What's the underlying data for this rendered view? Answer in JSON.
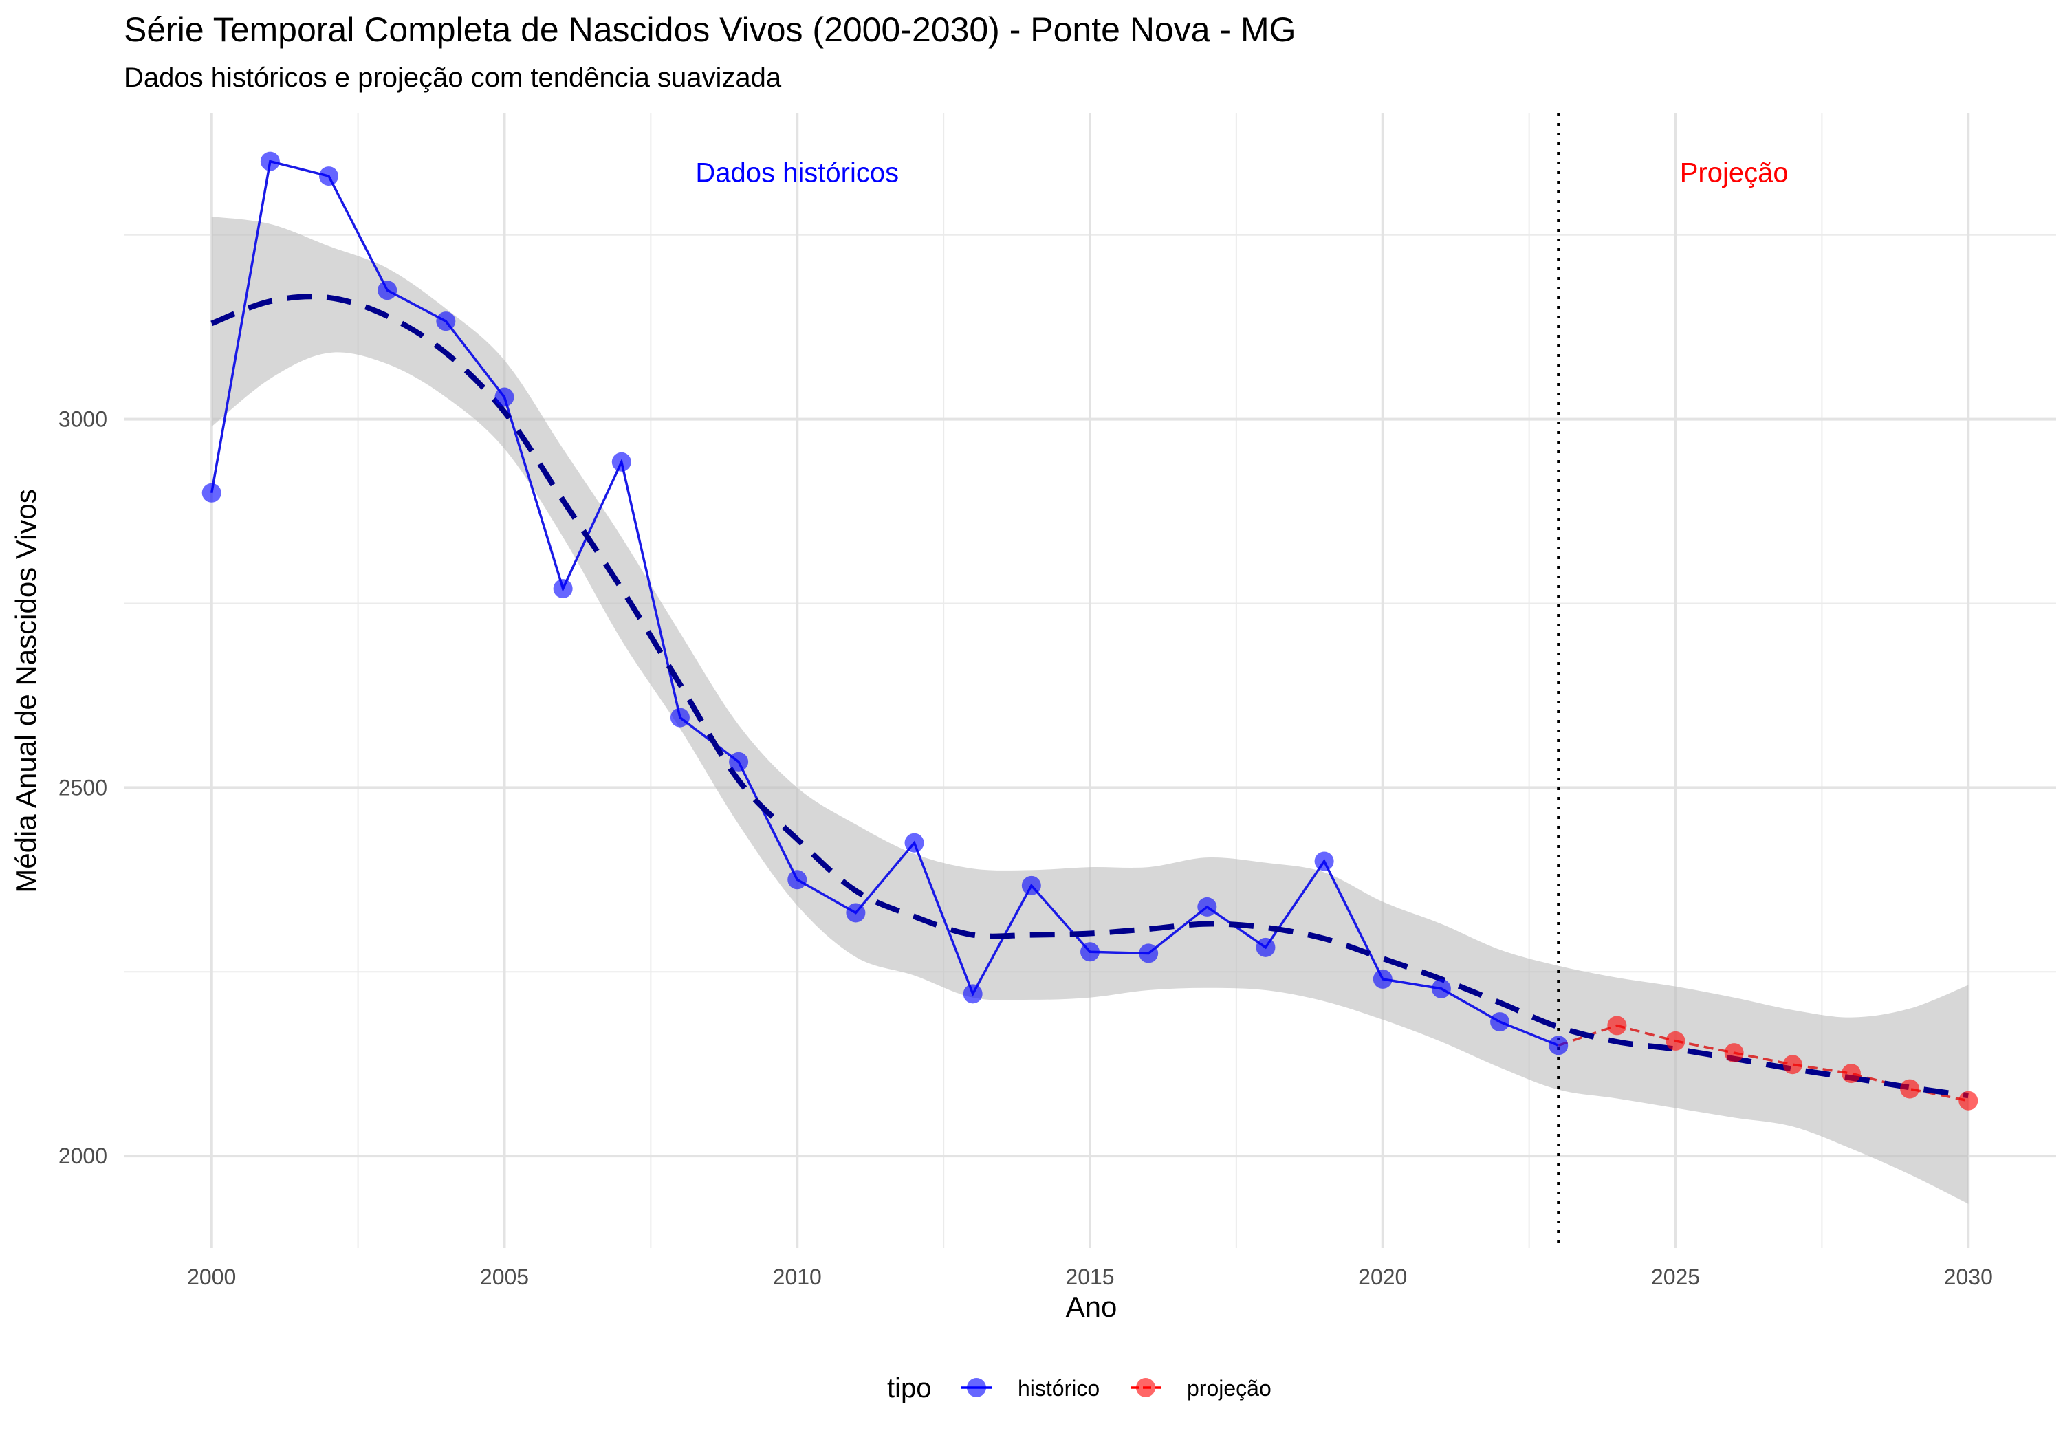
{
  "chart_data": {
    "type": "line",
    "title": "Série Temporal Completa de Nascidos Vivos (2000-2030) -  Ponte Nova - MG",
    "subtitle": "Dados históricos e projeção com tendência suavizada",
    "xlabel": "Ano",
    "ylabel": "Média Anual de Nascidos Vivos",
    "xlim": [
      1998.5,
      2031.5
    ],
    "ylim": [
      1875,
      3415
    ],
    "x_ticks": [
      2000,
      2005,
      2010,
      2015,
      2020,
      2025,
      2030
    ],
    "y_ticks": [
      2000,
      2500,
      3000
    ],
    "grid": true,
    "legend": {
      "title": "tipo",
      "position": "bottom",
      "entries": [
        {
          "label": "histórico",
          "color": "#0000ff"
        },
        {
          "label": "projeção",
          "color": "#ff0000"
        }
      ]
    },
    "annotations": [
      {
        "text": "Dados históricos",
        "x": 2010.0,
        "y": 3335,
        "color": "#0000ff"
      },
      {
        "text": "Projeção",
        "x": 2026.0,
        "y": 3335,
        "color": "#ff0000"
      }
    ],
    "divider_x": 2023,
    "series": [
      {
        "name": "histórico",
        "color": "#0000ff",
        "x": [
          2000,
          2001,
          2002,
          2003,
          2004,
          2005,
          2006,
          2007,
          2008,
          2009,
          2010,
          2011,
          2012,
          2013,
          2014,
          2015,
          2016,
          2017,
          2018,
          2019,
          2020,
          2021,
          2022,
          2023
        ],
        "y": [
          2900,
          3350,
          3330,
          3175,
          3133,
          3030,
          2770,
          2942,
          2595,
          2535,
          2375,
          2330,
          2425,
          2220,
          2367,
          2277,
          2275,
          2338,
          2283,
          2400,
          2240,
          2227,
          2182,
          2150
        ]
      },
      {
        "name": "projeção",
        "color": "#ff0000",
        "x": [
          2023,
          2024,
          2025,
          2026,
          2027,
          2028,
          2029,
          2030
        ],
        "y": [
          2150,
          2177,
          2156,
          2140,
          2124,
          2112,
          2091,
          2075
        ]
      }
    ],
    "trend": {
      "x": [
        2000,
        2001,
        2002,
        2003,
        2004,
        2005,
        2006,
        2007,
        2008,
        2009,
        2010,
        2011,
        2012,
        2013,
        2014,
        2015,
        2016,
        2017,
        2018,
        2019,
        2020,
        2021,
        2022,
        2023,
        2024,
        2025,
        2026,
        2027,
        2028,
        2029,
        2030
      ],
      "y": [
        3130,
        3160,
        3165,
        3140,
        3090,
        3010,
        2890,
        2770,
        2640,
        2510,
        2430,
        2360,
        2325,
        2300,
        2300,
        2302,
        2308,
        2315,
        2310,
        2295,
        2268,
        2240,
        2208,
        2175,
        2155,
        2145,
        2132,
        2118,
        2106,
        2093,
        2082
      ],
      "lower": [
        2990,
        3055,
        3090,
        3075,
        3030,
        2960,
        2840,
        2700,
        2580,
        2450,
        2340,
        2270,
        2245,
        2215,
        2212,
        2215,
        2225,
        2228,
        2225,
        2210,
        2185,
        2155,
        2120,
        2090,
        2078,
        2065,
        2052,
        2040,
        2010,
        1975,
        1935
      ],
      "upper": [
        3275,
        3265,
        3235,
        3205,
        3150,
        3080,
        2960,
        2840,
        2710,
        2585,
        2500,
        2450,
        2410,
        2390,
        2388,
        2392,
        2392,
        2405,
        2398,
        2385,
        2345,
        2315,
        2280,
        2258,
        2242,
        2230,
        2215,
        2198,
        2188,
        2200,
        2232
      ]
    }
  }
}
